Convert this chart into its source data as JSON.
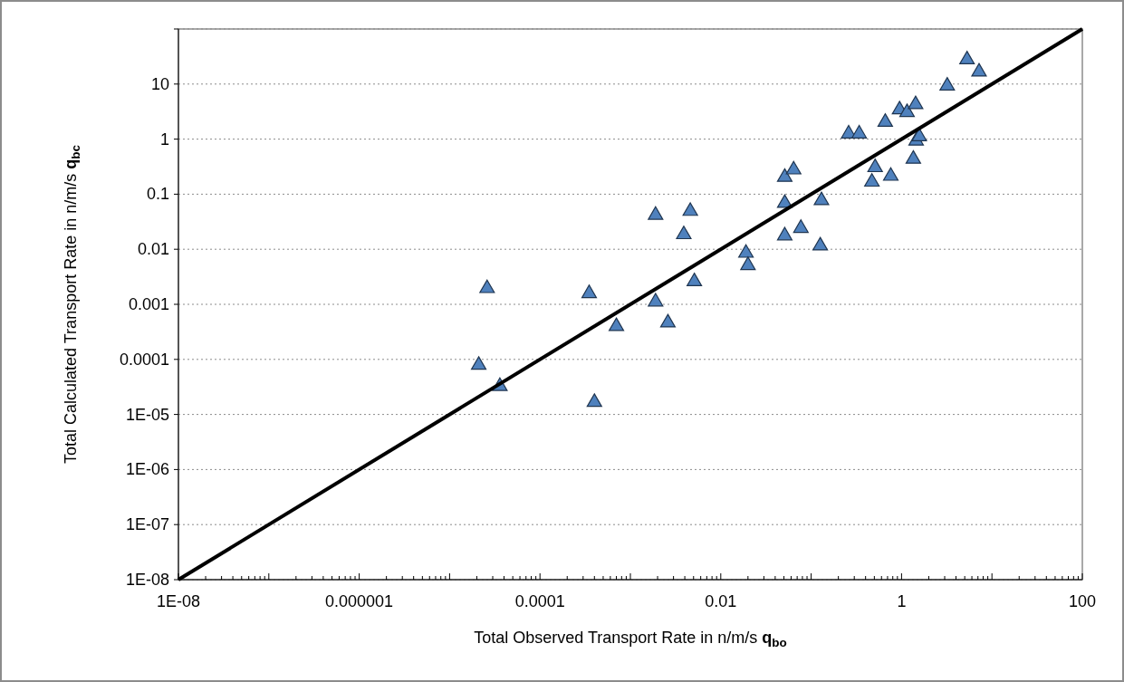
{
  "chart_data": {
    "type": "scatter",
    "xlabel": "Total Observed Transport Rate in n/m/s q$_{bo}$",
    "ylabel": "Total Calculated Transport Rate in n/m/s q$_{bc}$",
    "log": "xy",
    "grid": "y",
    "xlim": [
      1e-08,
      100
    ],
    "ylim": [
      1e-08,
      100
    ],
    "xticks": [
      {
        "value": 1e-08,
        "label": "1E-08"
      },
      {
        "value": 1e-07,
        "label": null
      },
      {
        "value": 1e-06,
        "label": "0.000001"
      },
      {
        "value": 1e-05,
        "label": null
      },
      0.0001,
      {
        "value": 0.001,
        "label": null
      },
      0.01,
      {
        "value": 0.1,
        "label": null
      },
      1,
      {
        "value": 10,
        "label": null
      },
      100
    ],
    "yticks": [
      {
        "value": 1e-08,
        "label": "1E-08"
      },
      {
        "value": 1e-07,
        "label": "1E-07"
      },
      {
        "value": 1e-06,
        "label": "1E-06"
      },
      {
        "value": 1e-05,
        "label": "1E-05"
      },
      0.0001,
      0.001,
      0.01,
      0.1,
      1,
      10,
      {
        "value": 100,
        "label": null
      }
    ],
    "series": [
      {
        "marker": "triangle",
        "color": "#4f81bd",
        "x": [
          2.1e-05,
          2.6e-05,
          3.6e-05,
          0.00035,
          0.0007,
          0.0004,
          0.0019,
          0.0019,
          0.0026,
          0.0039,
          0.0046,
          0.0051,
          0.019,
          0.02,
          0.051,
          0.051,
          0.051,
          0.064,
          0.077,
          0.13,
          0.126,
          0.26,
          0.34,
          0.51,
          0.47,
          0.66,
          0.76,
          0.95,
          1.15,
          1.35,
          1.43,
          1.45,
          1.57,
          3.2,
          5.3,
          7.2
        ],
        "values": [
          8.5e-05,
          0.0021,
          3.5e-05,
          0.0017,
          0.00043,
          1.8e-05,
          0.045,
          0.0012,
          0.0005,
          0.02,
          0.053,
          0.0028,
          0.0092,
          0.0055,
          0.22,
          0.074,
          0.019,
          0.3,
          0.026,
          0.083,
          0.0125,
          1.35,
          1.35,
          0.33,
          0.18,
          2.2,
          0.23,
          3.7,
          3.3,
          0.47,
          4.6,
          1.0,
          1.2,
          10,
          30,
          18
        ]
      },
      {
        "type": "line",
        "color": "#000000",
        "x": [
          1e-08,
          100
        ],
        "values": [
          1e-08,
          100
        ],
        "line_style": "solid",
        "marker": "none"
      }
    ]
  }
}
